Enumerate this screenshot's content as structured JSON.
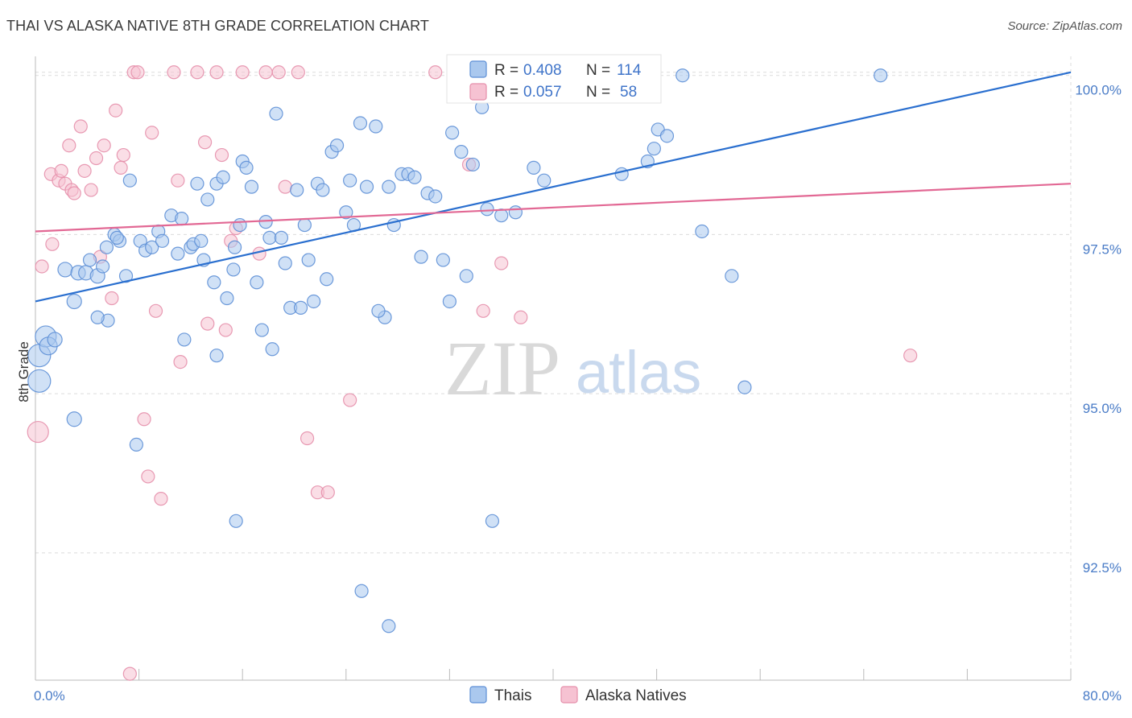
{
  "title": "THAI VS ALASKA NATIVE 8TH GRADE CORRELATION CHART",
  "source": "Source: ZipAtlas.com",
  "watermark": {
    "zip": "ZIP",
    "atlas": "atlas"
  },
  "colors": {
    "thai_fill": "#aac8ee",
    "thai_stroke": "#5d8fd6",
    "thai_line": "#2a6fcf",
    "alaska_fill": "#f6c2d2",
    "alaska_stroke": "#e58fab",
    "alaska_line": "#e26894",
    "grid": "#dcdcdc",
    "tick_text": "#4a7cc7"
  },
  "legend": {
    "rows": [
      {
        "r_label": "R = ",
        "r_value": "0.408",
        "n_label": "N = ",
        "n_value": "114"
      },
      {
        "r_label": "R = ",
        "r_value": "0.057",
        "n_label": "N = ",
        "n_value": "58"
      }
    ]
  },
  "chart_data": {
    "type": "scatter",
    "title": "THAI VS ALASKA NATIVE 8TH GRADE CORRELATION CHART",
    "xlabel": "",
    "ylabel": "8th Grade",
    "xlim": [
      0,
      80
    ],
    "ylim": [
      90.5,
      100.3
    ],
    "x_tick_labels": [
      "0.0%",
      "80.0%"
    ],
    "y_ticks": [
      92.5,
      95.0,
      97.5,
      100.0
    ],
    "y_tick_labels": [
      "92.5%",
      "95.0%",
      "97.5%",
      "100.0%"
    ],
    "grid": true,
    "legend_position": "bottom",
    "series": [
      {
        "name": "Thais",
        "trend": {
          "x": [
            0,
            80
          ],
          "y": [
            96.45,
            100.05
          ]
        },
        "points": [
          [
            0.3,
            95.6,
            14
          ],
          [
            0.3,
            95.2,
            14
          ],
          [
            0.8,
            95.9,
            13
          ],
          [
            1.0,
            95.75,
            11
          ],
          [
            1.5,
            95.85,
            9
          ],
          [
            2.3,
            96.95,
            9
          ],
          [
            3.0,
            96.45,
            9
          ],
          [
            3.3,
            96.9,
            9
          ],
          [
            3.9,
            96.9,
            9
          ],
          [
            4.2,
            97.1,
            8
          ],
          [
            4.8,
            96.85,
            9
          ],
          [
            5.2,
            97.0,
            8
          ],
          [
            5.5,
            97.3,
            8
          ],
          [
            6.1,
            97.5,
            8
          ],
          [
            6.5,
            97.4,
            8
          ],
          [
            7.0,
            96.85,
            8
          ],
          [
            7.3,
            98.35,
            8
          ],
          [
            8.1,
            97.4,
            8
          ],
          [
            8.5,
            97.25,
            8
          ],
          [
            9.0,
            97.3,
            8
          ],
          [
            9.5,
            97.55,
            8
          ],
          [
            9.8,
            97.4,
            8
          ],
          [
            10.5,
            97.8,
            8
          ],
          [
            11.0,
            97.2,
            8
          ],
          [
            11.3,
            97.75,
            8
          ],
          [
            12.0,
            97.3,
            8
          ],
          [
            12.2,
            97.35,
            8
          ],
          [
            12.5,
            98.3,
            8
          ],
          [
            12.8,
            97.4,
            8
          ],
          [
            13.0,
            97.1,
            8
          ],
          [
            13.3,
            98.05,
            8
          ],
          [
            13.8,
            96.75,
            8
          ],
          [
            14.0,
            98.3,
            8
          ],
          [
            14.5,
            98.4,
            8
          ],
          [
            14.8,
            96.5,
            8
          ],
          [
            15.3,
            96.95,
            8
          ],
          [
            15.4,
            97.3,
            8
          ],
          [
            15.8,
            97.65,
            8
          ],
          [
            16.0,
            98.65,
            8
          ],
          [
            16.3,
            98.55,
            8
          ],
          [
            16.7,
            98.25,
            8
          ],
          [
            17.1,
            96.75,
            8
          ],
          [
            17.5,
            96.0,
            8
          ],
          [
            17.8,
            97.7,
            8
          ],
          [
            18.1,
            97.45,
            8
          ],
          [
            18.3,
            95.7,
            8
          ],
          [
            18.6,
            99.4,
            8
          ],
          [
            19.0,
            97.45,
            8
          ],
          [
            19.3,
            97.05,
            8
          ],
          [
            19.7,
            96.35,
            8
          ],
          [
            20.2,
            98.2,
            8
          ],
          [
            20.5,
            96.35,
            8
          ],
          [
            20.8,
            97.65,
            8
          ],
          [
            21.1,
            97.1,
            8
          ],
          [
            21.5,
            96.45,
            8
          ],
          [
            21.8,
            98.3,
            8
          ],
          [
            22.2,
            98.2,
            8
          ],
          [
            22.5,
            96.8,
            8
          ],
          [
            22.9,
            98.8,
            8
          ],
          [
            23.3,
            98.9,
            8
          ],
          [
            24.0,
            97.85,
            8
          ],
          [
            24.3,
            98.35,
            8
          ],
          [
            24.6,
            97.65,
            8
          ],
          [
            25.1,
            99.25,
            8
          ],
          [
            25.6,
            98.25,
            8
          ],
          [
            26.3,
            99.2,
            8
          ],
          [
            27.0,
            96.2,
            8
          ],
          [
            27.3,
            98.25,
            8
          ],
          [
            27.7,
            97.65,
            8
          ],
          [
            28.3,
            98.45,
            8
          ],
          [
            28.8,
            98.45,
            8
          ],
          [
            29.3,
            98.4,
            8
          ],
          [
            29.8,
            97.15,
            8
          ],
          [
            30.3,
            98.15,
            8
          ],
          [
            30.9,
            98.1,
            8
          ],
          [
            31.5,
            97.1,
            8
          ],
          [
            32.0,
            96.45,
            8
          ],
          [
            32.2,
            99.1,
            8
          ],
          [
            32.9,
            98.8,
            8
          ],
          [
            33.3,
            96.85,
            8
          ],
          [
            33.8,
            98.6,
            8
          ],
          [
            34.5,
            99.5,
            8
          ],
          [
            34.9,
            97.9,
            8
          ],
          [
            36.0,
            97.8,
            8
          ],
          [
            37.1,
            97.85,
            8
          ],
          [
            38.5,
            98.55,
            8
          ],
          [
            39.3,
            98.35,
            8
          ],
          [
            41.5,
            100.0,
            8
          ],
          [
            41.8,
            99.9,
            8
          ],
          [
            42.6,
            100.05,
            8
          ],
          [
            44.2,
            100.05,
            8
          ],
          [
            45.3,
            98.45,
            8
          ],
          [
            47.3,
            98.65,
            8
          ],
          [
            47.8,
            98.85,
            8
          ],
          [
            48.1,
            99.15,
            8
          ],
          [
            48.8,
            99.05,
            8
          ],
          [
            50.0,
            100.0,
            8
          ],
          [
            51.5,
            97.55,
            8
          ],
          [
            53.8,
            96.85,
            8
          ],
          [
            54.8,
            95.1,
            8
          ],
          [
            65.3,
            100.0,
            8
          ],
          [
            14.0,
            95.6,
            8
          ],
          [
            15.5,
            93.0,
            8
          ],
          [
            25.2,
            91.9,
            8
          ],
          [
            27.3,
            91.35,
            8
          ],
          [
            35.3,
            93.0,
            8
          ],
          [
            11.5,
            95.85,
            8
          ],
          [
            5.6,
            96.15,
            8
          ],
          [
            6.3,
            97.45,
            8
          ],
          [
            7.8,
            94.2,
            8
          ],
          [
            3.0,
            94.6,
            9
          ],
          [
            4.8,
            96.2,
            8
          ],
          [
            26.5,
            96.3,
            8
          ],
          [
            36.6,
            100.0,
            8
          ]
        ]
      },
      {
        "name": "Alaska Natives",
        "trend": {
          "x": [
            0,
            80
          ],
          "y": [
            97.55,
            98.3
          ]
        },
        "points": [
          [
            0.2,
            94.4,
            13
          ],
          [
            0.5,
            97.0,
            8
          ],
          [
            1.2,
            98.45,
            8
          ],
          [
            1.3,
            97.35,
            8
          ],
          [
            1.8,
            98.35,
            8
          ],
          [
            2.0,
            98.5,
            8
          ],
          [
            2.3,
            98.3,
            8
          ],
          [
            2.6,
            98.9,
            8
          ],
          [
            2.8,
            98.2,
            8
          ],
          [
            3.0,
            98.15,
            8
          ],
          [
            3.5,
            99.2,
            8
          ],
          [
            3.8,
            98.5,
            8
          ],
          [
            4.3,
            98.2,
            8
          ],
          [
            4.7,
            98.7,
            8
          ],
          [
            5.0,
            97.15,
            8
          ],
          [
            5.3,
            98.9,
            8
          ],
          [
            5.9,
            96.5,
            8
          ],
          [
            6.2,
            99.45,
            8
          ],
          [
            6.6,
            98.55,
            8
          ],
          [
            6.8,
            98.75,
            8
          ],
          [
            7.3,
            90.6,
            8
          ],
          [
            7.6,
            100.05,
            8
          ],
          [
            7.9,
            100.05,
            8
          ],
          [
            8.4,
            94.6,
            8
          ],
          [
            8.7,
            93.7,
            8
          ],
          [
            9.0,
            99.1,
            8
          ],
          [
            9.3,
            96.3,
            8
          ],
          [
            9.7,
            93.35,
            8
          ],
          [
            10.7,
            100.05,
            8
          ],
          [
            11.0,
            98.35,
            8
          ],
          [
            11.2,
            95.5,
            8
          ],
          [
            12.5,
            100.05,
            8
          ],
          [
            13.1,
            98.95,
            8
          ],
          [
            13.3,
            96.1,
            8
          ],
          [
            14.0,
            100.05,
            8
          ],
          [
            14.4,
            98.75,
            8
          ],
          [
            14.7,
            96.0,
            8
          ],
          [
            15.1,
            97.4,
            8
          ],
          [
            15.5,
            97.6,
            8
          ],
          [
            16.0,
            100.05,
            8
          ],
          [
            17.3,
            97.2,
            8
          ],
          [
            17.8,
            100.05,
            8
          ],
          [
            18.8,
            100.05,
            8
          ],
          [
            19.3,
            98.25,
            8
          ],
          [
            20.3,
            100.05,
            8
          ],
          [
            21.0,
            94.3,
            8
          ],
          [
            21.8,
            93.45,
            8
          ],
          [
            22.6,
            93.45,
            8
          ],
          [
            24.3,
            94.9,
            8
          ],
          [
            30.9,
            100.05,
            8
          ],
          [
            33.5,
            98.6,
            8
          ],
          [
            34.6,
            96.3,
            8
          ],
          [
            36.0,
            97.05,
            8
          ],
          [
            37.5,
            96.2,
            8
          ],
          [
            39.4,
            100.05,
            8
          ],
          [
            42.5,
            100.05,
            8
          ],
          [
            67.6,
            95.6,
            8
          ],
          [
            38.0,
            100.05,
            8
          ]
        ]
      }
    ]
  }
}
